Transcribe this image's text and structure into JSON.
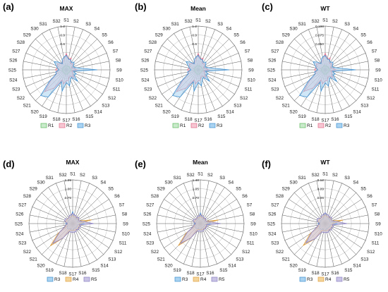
{
  "axis_labels": [
    "S1",
    "S2",
    "S3",
    "S4",
    "S5",
    "S6",
    "S7",
    "S8",
    "S9",
    "S10",
    "S11",
    "S12",
    "S13",
    "S14",
    "S15",
    "S16",
    "S17",
    "S18",
    "S19",
    "S20",
    "S21",
    "S22",
    "S23",
    "S24",
    "S25",
    "S26",
    "S27",
    "S28",
    "S29",
    "S30",
    "S31",
    "S32"
  ],
  "series_colors": {
    "R1": {
      "stroke": "#5cb85c",
      "fill": "#c9ebcb"
    },
    "R2": {
      "stroke": "#e06a86",
      "fill": "#f6c6d2"
    },
    "R3": {
      "stroke": "#3f8fd0",
      "fill": "#a9d3f0"
    },
    "R4": {
      "stroke": "#e0a040",
      "fill": "#f3d49a"
    },
    "R5": {
      "stroke": "#8a80c0",
      "fill": "#c9c3e6"
    }
  },
  "chart_data": [
    {
      "type": "radar",
      "panel": "(a)",
      "title": "MAX",
      "ticks": [
        "0.6",
        "0.9",
        "1.2"
      ],
      "rmax": 1.2,
      "legend": [
        "R1",
        "R2",
        "R3"
      ],
      "series": [
        {
          "name": "R1",
          "values": [
            0.12,
            0.1,
            0.1,
            0.1,
            0.12,
            0.1,
            0.1,
            0.12,
            0.15,
            0.1,
            0.1,
            0.1,
            0.1,
            0.1,
            0.1,
            0.12,
            0.12,
            0.12,
            0.1,
            0.1,
            0.1,
            0.1,
            0.1,
            0.1,
            0.12,
            0.1,
            0.1,
            0.1,
            0.1,
            0.1,
            0.1,
            0.12
          ]
        },
        {
          "name": "R2",
          "values": [
            0.45,
            0.3,
            0.35,
            0.2,
            0.25,
            0.2,
            0.15,
            0.2,
            0.3,
            0.15,
            0.2,
            0.2,
            0.3,
            0.2,
            0.2,
            0.3,
            0.3,
            0.4,
            0.3,
            0.6,
            0.85,
            0.5,
            0.3,
            0.25,
            0.3,
            0.25,
            0.25,
            0.3,
            0.25,
            0.2,
            0.25,
            0.3
          ]
        },
        {
          "name": "R3",
          "values": [
            0.4,
            0.3,
            0.3,
            0.25,
            0.3,
            0.25,
            0.2,
            0.3,
            0.85,
            0.2,
            0.3,
            0.25,
            0.45,
            0.25,
            0.3,
            0.45,
            0.35,
            0.6,
            0.35,
            0.9,
            1.0,
            0.55,
            0.3,
            0.3,
            0.2,
            0.25,
            0.3,
            0.4,
            0.3,
            0.2,
            0.3,
            0.35
          ]
        }
      ]
    },
    {
      "type": "radar",
      "panel": "(b)",
      "title": "Mean",
      "ticks": [
        "0.6",
        "0.9",
        "1.2"
      ],
      "rmax": 1.2,
      "legend": [
        "R1",
        "R2",
        "R3"
      ],
      "series": [
        {
          "name": "R1",
          "values": [
            0.12,
            0.1,
            0.1,
            0.1,
            0.12,
            0.1,
            0.1,
            0.12,
            0.15,
            0.1,
            0.1,
            0.1,
            0.1,
            0.1,
            0.1,
            0.12,
            0.12,
            0.12,
            0.1,
            0.1,
            0.1,
            0.1,
            0.1,
            0.1,
            0.12,
            0.1,
            0.1,
            0.1,
            0.1,
            0.1,
            0.1,
            0.12
          ]
        },
        {
          "name": "R2",
          "values": [
            0.45,
            0.3,
            0.35,
            0.2,
            0.25,
            0.2,
            0.15,
            0.2,
            0.3,
            0.15,
            0.2,
            0.2,
            0.3,
            0.2,
            0.2,
            0.3,
            0.3,
            0.4,
            0.3,
            0.6,
            0.85,
            0.5,
            0.3,
            0.25,
            0.3,
            0.25,
            0.25,
            0.3,
            0.25,
            0.2,
            0.25,
            0.3
          ]
        },
        {
          "name": "R3",
          "values": [
            0.4,
            0.3,
            0.3,
            0.25,
            0.3,
            0.25,
            0.2,
            0.3,
            0.85,
            0.2,
            0.3,
            0.25,
            0.45,
            0.25,
            0.3,
            0.45,
            0.35,
            0.6,
            0.35,
            0.9,
            1.0,
            0.55,
            0.3,
            0.3,
            0.2,
            0.25,
            0.3,
            0.4,
            0.3,
            0.2,
            0.3,
            0.35
          ]
        }
      ]
    },
    {
      "type": "radar",
      "panel": "(c)",
      "title": "WT",
      "ticks": [
        "0.050",
        "0.075",
        "0.100"
      ],
      "rmax": 0.1,
      "legend": [
        "R1",
        "R2",
        "R3"
      ],
      "series": [
        {
          "name": "R1",
          "values": [
            0.01,
            0.008,
            0.008,
            0.008,
            0.01,
            0.008,
            0.008,
            0.01,
            0.012,
            0.008,
            0.008,
            0.008,
            0.008,
            0.008,
            0.008,
            0.01,
            0.01,
            0.01,
            0.008,
            0.008,
            0.008,
            0.008,
            0.008,
            0.008,
            0.01,
            0.008,
            0.008,
            0.008,
            0.008,
            0.008,
            0.008,
            0.01
          ]
        },
        {
          "name": "R2",
          "values": [
            0.038,
            0.025,
            0.03,
            0.017,
            0.021,
            0.017,
            0.013,
            0.017,
            0.025,
            0.013,
            0.017,
            0.017,
            0.025,
            0.017,
            0.017,
            0.025,
            0.025,
            0.033,
            0.025,
            0.05,
            0.07,
            0.042,
            0.025,
            0.021,
            0.025,
            0.021,
            0.021,
            0.025,
            0.021,
            0.017,
            0.021,
            0.025
          ]
        },
        {
          "name": "R3",
          "values": [
            0.033,
            0.025,
            0.025,
            0.021,
            0.025,
            0.021,
            0.017,
            0.025,
            0.07,
            0.017,
            0.025,
            0.021,
            0.038,
            0.021,
            0.025,
            0.038,
            0.03,
            0.05,
            0.03,
            0.075,
            0.083,
            0.046,
            0.025,
            0.025,
            0.017,
            0.021,
            0.025,
            0.033,
            0.025,
            0.017,
            0.025,
            0.03
          ]
        }
      ]
    },
    {
      "type": "radar",
      "panel": "(d)",
      "title": "MAX",
      "ticks": [
        "0.75",
        "1.00",
        "1.25"
      ],
      "rmax": 1.25,
      "legend": [
        "R3",
        "R4",
        "R5"
      ],
      "series": [
        {
          "name": "R3",
          "values": [
            0.35,
            0.2,
            0.2,
            0.15,
            0.2,
            0.15,
            0.15,
            0.2,
            0.35,
            0.15,
            0.15,
            0.15,
            0.15,
            0.15,
            0.15,
            0.15,
            0.2,
            0.2,
            0.15,
            0.2,
            0.2,
            0.2,
            0.15,
            0.15,
            0.2,
            0.15,
            0.15,
            0.15,
            0.15,
            0.15,
            0.15,
            0.2
          ]
        },
        {
          "name": "R4",
          "values": [
            0.25,
            0.2,
            0.2,
            0.2,
            0.2,
            0.2,
            0.2,
            0.55,
            0.2,
            0.2,
            0.2,
            0.2,
            0.2,
            0.2,
            0.2,
            0.2,
            0.2,
            0.2,
            0.2,
            0.5,
            0.9,
            0.5,
            0.2,
            0.2,
            0.15,
            0.2,
            0.2,
            0.2,
            0.2,
            0.2,
            0.2,
            0.2
          ]
        },
        {
          "name": "R5",
          "values": [
            0.3,
            0.25,
            0.25,
            0.2,
            0.25,
            0.2,
            0.2,
            0.3,
            0.6,
            0.2,
            0.25,
            0.2,
            0.25,
            0.2,
            0.25,
            0.25,
            0.25,
            0.25,
            0.25,
            0.5,
            0.8,
            0.45,
            0.25,
            0.2,
            0.15,
            0.2,
            0.25,
            0.25,
            0.2,
            0.2,
            0.25,
            0.25
          ]
        }
      ]
    },
    {
      "type": "radar",
      "panel": "(e)",
      "title": "Mean",
      "ticks": [
        "0.70",
        "1.05",
        "1.40"
      ],
      "rmax": 1.4,
      "legend": [
        "R3",
        "R4",
        "R5"
      ],
      "series": [
        {
          "name": "R3",
          "values": [
            0.35,
            0.2,
            0.2,
            0.15,
            0.2,
            0.15,
            0.15,
            0.2,
            0.35,
            0.15,
            0.15,
            0.15,
            0.15,
            0.15,
            0.15,
            0.15,
            0.2,
            0.2,
            0.15,
            0.2,
            0.2,
            0.2,
            0.15,
            0.15,
            0.2,
            0.15,
            0.15,
            0.15,
            0.15,
            0.15,
            0.15,
            0.2
          ]
        },
        {
          "name": "R4",
          "values": [
            0.25,
            0.2,
            0.2,
            0.2,
            0.2,
            0.2,
            0.2,
            0.6,
            0.2,
            0.2,
            0.2,
            0.2,
            0.2,
            0.2,
            0.2,
            0.2,
            0.2,
            0.2,
            0.2,
            0.55,
            1.0,
            0.55,
            0.2,
            0.2,
            0.15,
            0.2,
            0.2,
            0.2,
            0.2,
            0.2,
            0.2,
            0.2
          ]
        },
        {
          "name": "R5",
          "values": [
            0.3,
            0.25,
            0.25,
            0.2,
            0.25,
            0.2,
            0.2,
            0.3,
            0.65,
            0.2,
            0.25,
            0.2,
            0.25,
            0.2,
            0.25,
            0.25,
            0.25,
            0.25,
            0.25,
            0.55,
            0.9,
            0.5,
            0.25,
            0.2,
            0.15,
            0.2,
            0.25,
            0.25,
            0.2,
            0.2,
            0.25,
            0.25
          ]
        }
      ]
    },
    {
      "type": "radar",
      "panel": "(f)",
      "title": "WT",
      "ticks": [
        "0.06",
        "0.09",
        "0.12"
      ],
      "rmax": 0.12,
      "legend": [
        "R3",
        "R4",
        "R5"
      ],
      "series": [
        {
          "name": "R3",
          "values": [
            0.03,
            0.02,
            0.02,
            0.015,
            0.02,
            0.015,
            0.015,
            0.02,
            0.035,
            0.015,
            0.015,
            0.015,
            0.015,
            0.015,
            0.015,
            0.015,
            0.02,
            0.02,
            0.015,
            0.02,
            0.02,
            0.02,
            0.015,
            0.015,
            0.02,
            0.015,
            0.015,
            0.015,
            0.015,
            0.015,
            0.015,
            0.02
          ]
        },
        {
          "name": "R4",
          "values": [
            0.025,
            0.02,
            0.02,
            0.02,
            0.02,
            0.02,
            0.02,
            0.05,
            0.02,
            0.02,
            0.02,
            0.02,
            0.02,
            0.02,
            0.02,
            0.02,
            0.02,
            0.02,
            0.02,
            0.05,
            0.085,
            0.05,
            0.02,
            0.02,
            0.015,
            0.02,
            0.02,
            0.02,
            0.02,
            0.02,
            0.02,
            0.02
          ]
        },
        {
          "name": "R5",
          "values": [
            0.03,
            0.025,
            0.025,
            0.02,
            0.025,
            0.02,
            0.02,
            0.03,
            0.06,
            0.02,
            0.025,
            0.02,
            0.025,
            0.02,
            0.025,
            0.025,
            0.025,
            0.025,
            0.025,
            0.05,
            0.075,
            0.045,
            0.025,
            0.02,
            0.015,
            0.02,
            0.025,
            0.025,
            0.02,
            0.02,
            0.025,
            0.025
          ]
        }
      ]
    }
  ]
}
